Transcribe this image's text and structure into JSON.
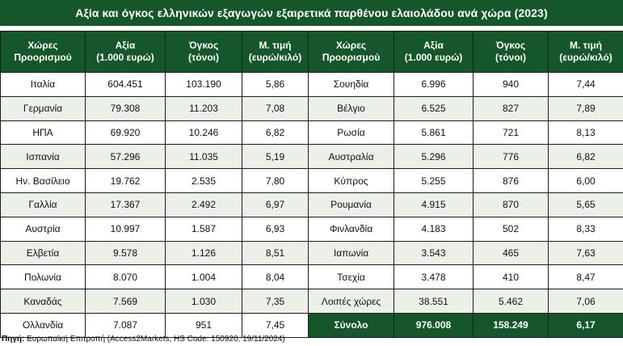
{
  "title": "Αξία και όγκος ελληνικών εξαγωγών εξαιρετικά παρθένου ελαιολάδου ανά χώρα (2023)",
  "headers": {
    "country": [
      "Χώρες",
      "Προορισμού"
    ],
    "value": [
      "Αξία",
      "(1.000 ευρώ)"
    ],
    "volume": [
      "Όγκος",
      "(τόνοι)"
    ],
    "price": [
      "Μ. τιμή",
      "(ευρώ/κιλό)"
    ]
  },
  "left": [
    {
      "country": "Ιταλία",
      "value": "604.451",
      "volume": "103.190",
      "price": "5,86"
    },
    {
      "country": "Γερμανία",
      "value": "79.308",
      "volume": "11.203",
      "price": "7,08"
    },
    {
      "country": "ΗΠΑ",
      "value": "69.920",
      "volume": "10.246",
      "price": "6,82"
    },
    {
      "country": "Ισπανία",
      "value": "57.296",
      "volume": "11.035",
      "price": "5,19"
    },
    {
      "country": "Ην. Βασίλειο",
      "value": "19.762",
      "volume": "2.535",
      "price": "7,80"
    },
    {
      "country": "Γαλλία",
      "value": "17.367",
      "volume": "2.492",
      "price": "6,97"
    },
    {
      "country": "Αυστρία",
      "value": "10.997",
      "volume": "1.587",
      "price": "6,93"
    },
    {
      "country": "Ελβετία",
      "value": "9.578",
      "volume": "1.126",
      "price": "8,51"
    },
    {
      "country": "Πολωνία",
      "value": "8.070",
      "volume": "1.004",
      "price": "8,04"
    },
    {
      "country": "Καναδάς",
      "value": "7.569",
      "volume": "1.030",
      "price": "7,35"
    },
    {
      "country": "Ολλανδία",
      "value": "7.087",
      "volume": "951",
      "price": "7,45"
    }
  ],
  "right": [
    {
      "country": "Σουηδία",
      "value": "6.996",
      "volume": "940",
      "price": "7,44"
    },
    {
      "country": "Βέλγιο",
      "value": "6.525",
      "volume": "827",
      "price": "7,89"
    },
    {
      "country": "Ρωσία",
      "value": "5.861",
      "volume": "721",
      "price": "8,13"
    },
    {
      "country": "Αυστραλία",
      "value": "5.296",
      "volume": "776",
      "price": "6,82"
    },
    {
      "country": "Κύπρος",
      "value": "5.255",
      "volume": "876",
      "price": "6,00"
    },
    {
      "country": "Ρουμανία",
      "value": "4.915",
      "volume": "870",
      "price": "5,65"
    },
    {
      "country": "Φινλανδία",
      "value": "4.183",
      "volume": "502",
      "price": "8,33"
    },
    {
      "country": "Ιαπωνία",
      "value": "3.543",
      "volume": "465",
      "price": "7,63"
    },
    {
      "country": "Τσεχία",
      "value": "3.478",
      "volume": "410",
      "price": "8,47"
    },
    {
      "country": "Λοιπές χώρες",
      "value": "38.551",
      "volume": "5.462",
      "price": "7,06"
    },
    {
      "country": "Σύνολο",
      "value": "976.008",
      "volume": "158.249",
      "price": "6,17",
      "total": true
    }
  ],
  "source": {
    "label": "Πηγή:",
    "text": "Ευρωπαϊκή Επιτροπή (Access2Markets, HS Code: 150920, 19/11/2024)"
  },
  "colors": {
    "header_bg": "#15562a",
    "row_shade": "#ebf1e6"
  }
}
